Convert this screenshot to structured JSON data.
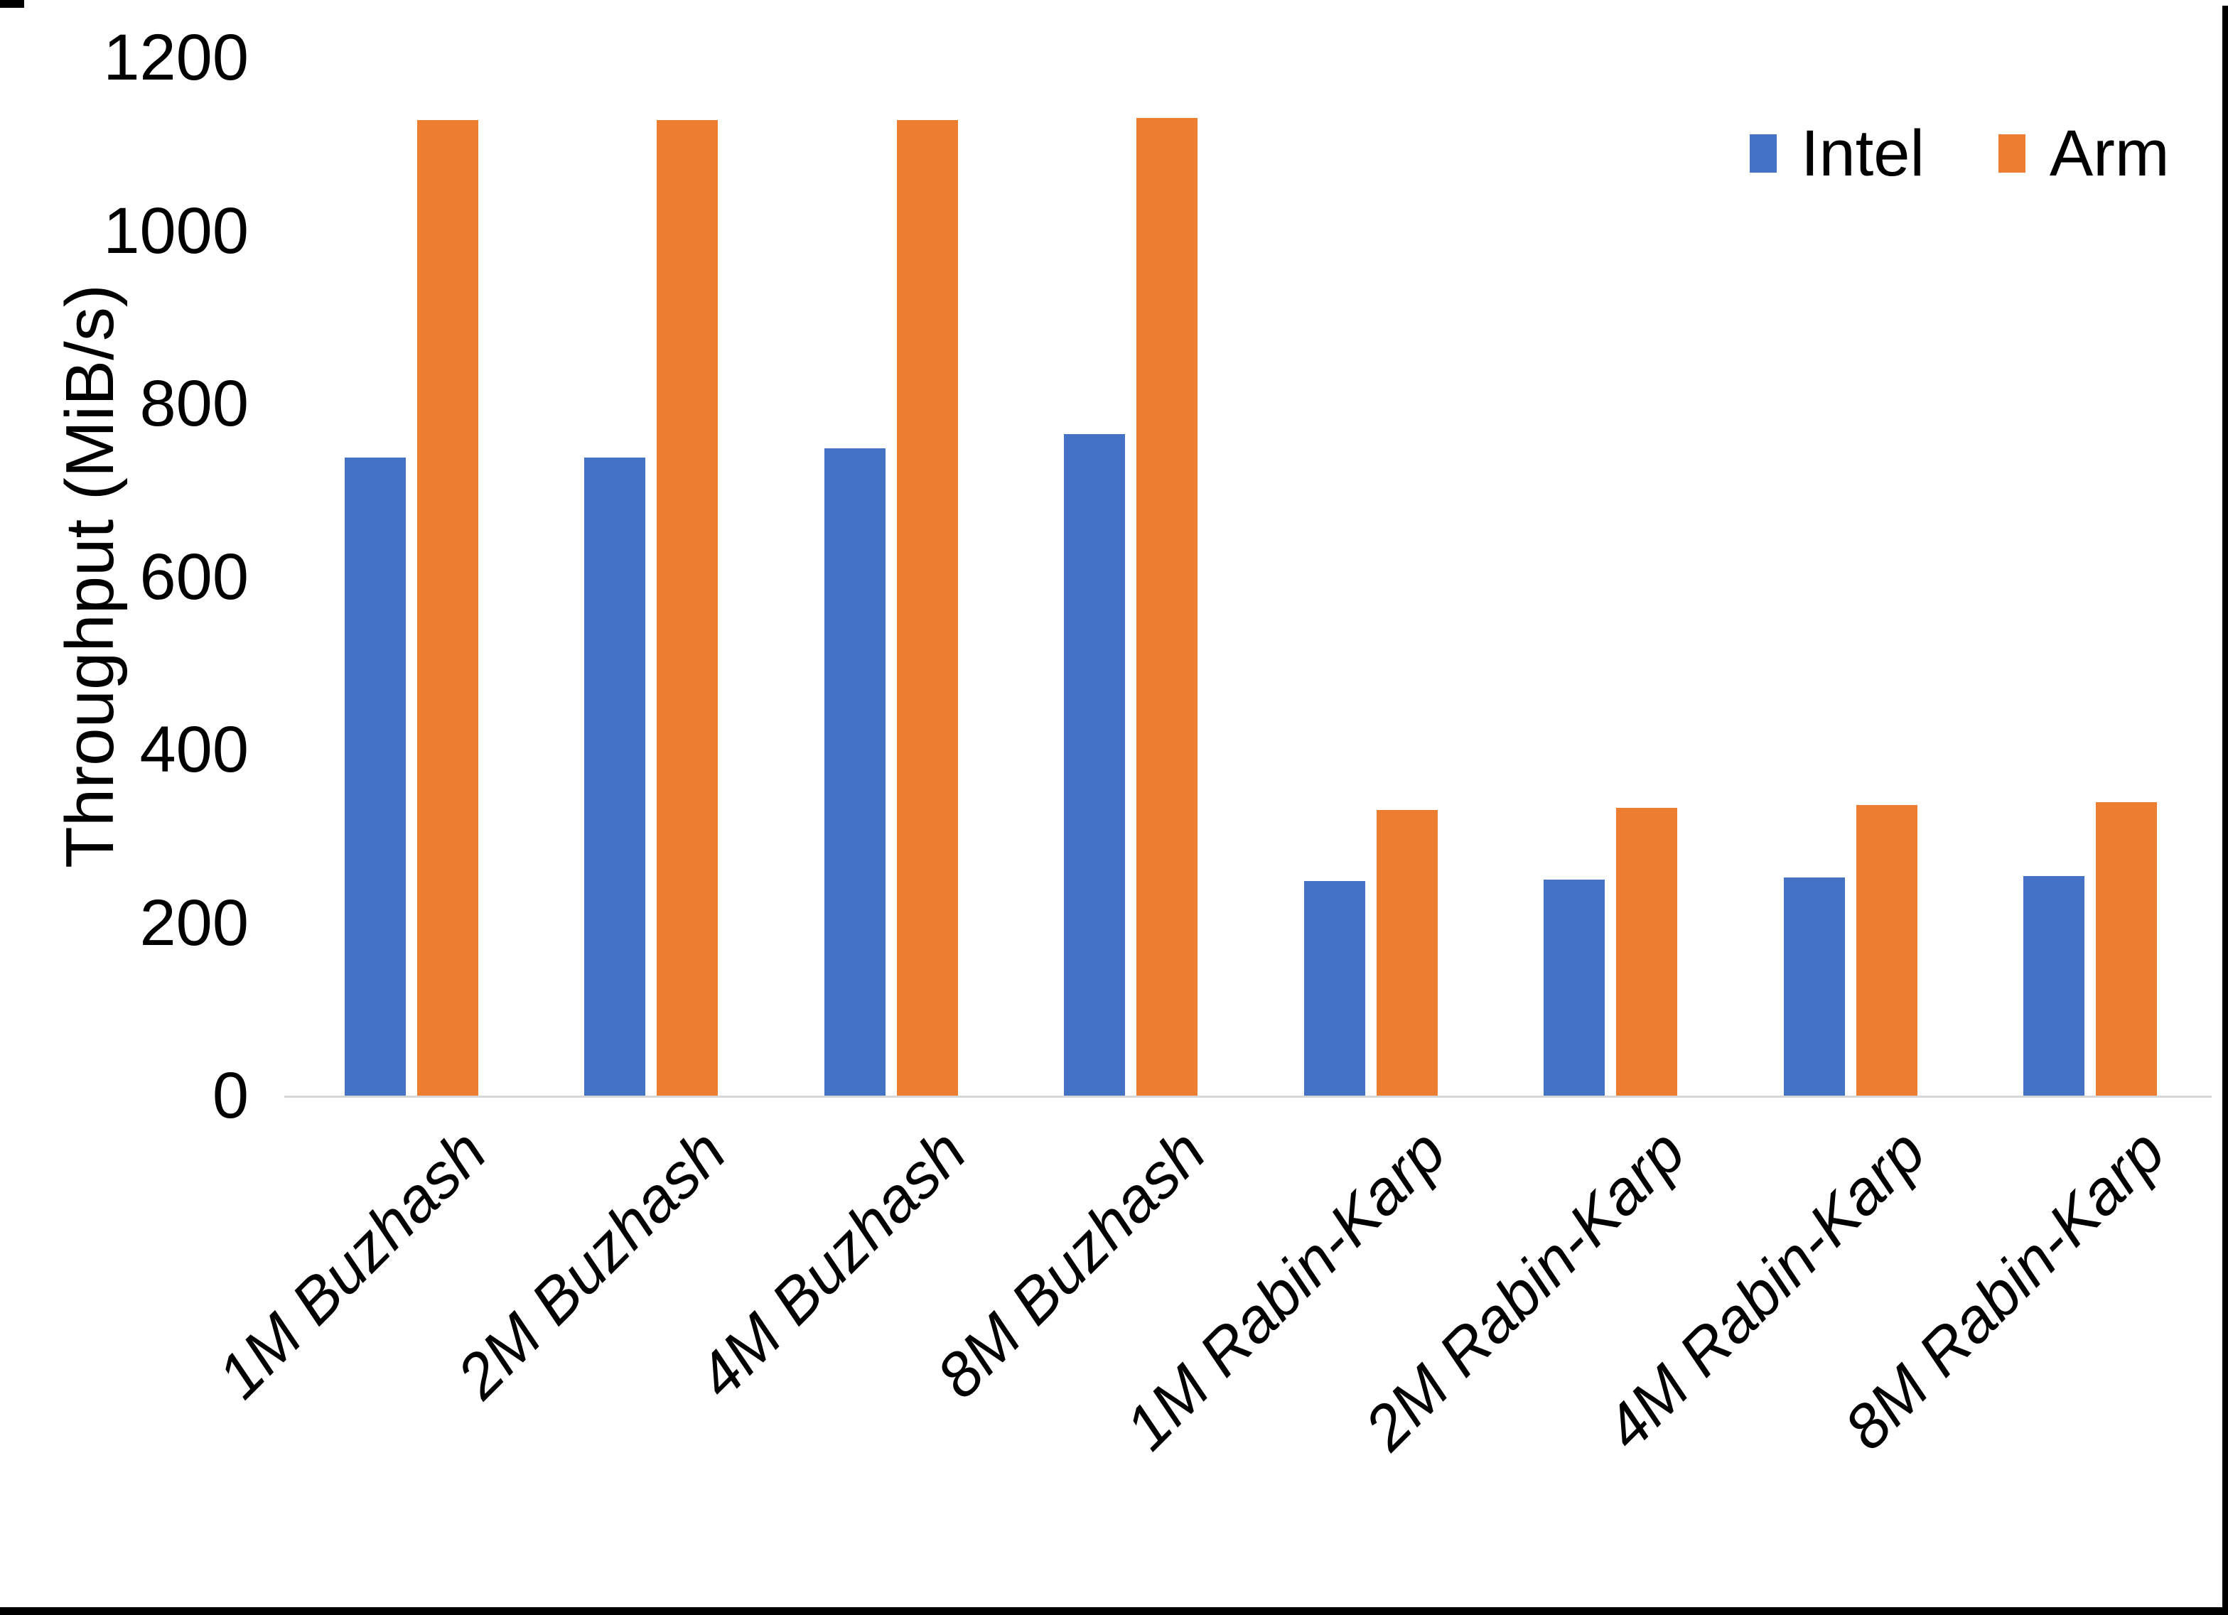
{
  "chart_data": {
    "type": "bar",
    "title": "",
    "xlabel": "",
    "ylabel": "Throughput (MiB/s)",
    "ylim": [
      0,
      1200
    ],
    "yticks": [
      0,
      200,
      400,
      600,
      800,
      1000,
      1200
    ],
    "grid": false,
    "legend_position": "top-right",
    "categories": [
      "1M Buzhash",
      "2M Buzhash",
      "4M Buzhash",
      "8M Buzhash",
      "1M Rabin-Karp",
      "2M Rabin-Karp",
      "4M Rabin-Karp",
      "8M Rabin-Karp"
    ],
    "series": [
      {
        "name": "Intel",
        "color": "#4472C4",
        "values": [
          738,
          738,
          748,
          765,
          248,
          250,
          252,
          254
        ]
      },
      {
        "name": "Arm",
        "color": "#ED7D31",
        "values": [
          1128,
          1128,
          1128,
          1130,
          330,
          333,
          336,
          339
        ]
      }
    ]
  },
  "frame": {
    "background": "#FFFFFF",
    "edge_color": "#000000",
    "axis_line_color": "#D6D6D6",
    "text_color": "#000000"
  }
}
